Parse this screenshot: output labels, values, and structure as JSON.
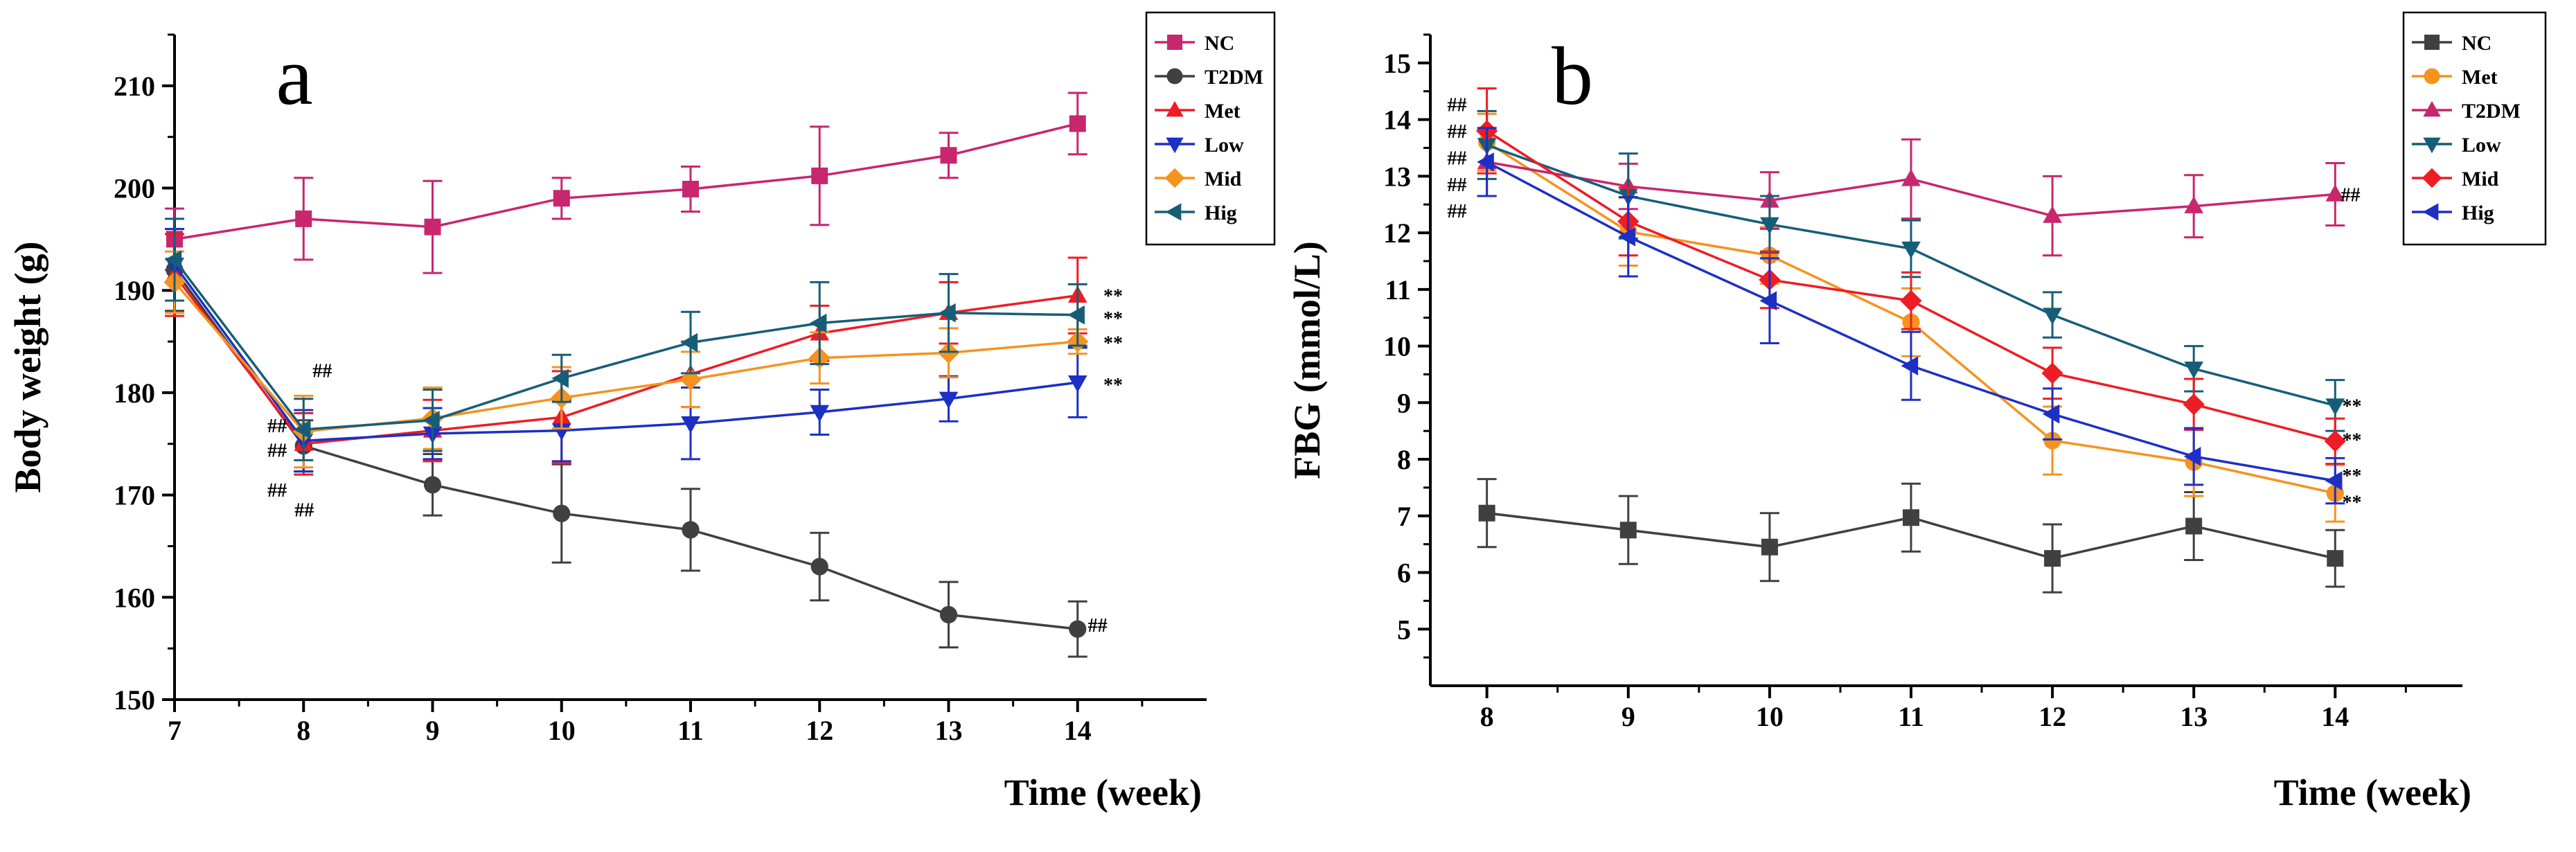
{
  "chart_data": [
    {
      "type": "line",
      "panel_label": "a",
      "xlabel": "Time (week)",
      "ylabel": "Body weight (g)",
      "xlim": [
        7,
        15
      ],
      "ylim": [
        150,
        215
      ],
      "xticks": [
        7,
        8,
        9,
        10,
        11,
        12,
        13,
        14
      ],
      "yticks": [
        150,
        160,
        170,
        180,
        190,
        200,
        210
      ],
      "legend_position": "top-right",
      "series": [
        {
          "name": "NC",
          "color": "#c8266f",
          "marker": "square",
          "x": [
            7,
            8,
            9,
            10,
            11,
            12,
            13,
            14
          ],
          "values": [
            195,
            197,
            196.2,
            199,
            199.9,
            201.2,
            203.2,
            206.3
          ],
          "errors": [
            3,
            4,
            4.5,
            2,
            2.2,
            4.8,
            2.2,
            3
          ]
        },
        {
          "name": "T2DM",
          "color": "#404040",
          "marker": "circle",
          "x": [
            7,
            8,
            9,
            10,
            11,
            12,
            13,
            14
          ],
          "values": [
            192,
            174.8,
            171,
            168.2,
            166.6,
            163,
            158.3,
            156.9
          ],
          "errors": [
            4,
            2.5,
            3,
            4.8,
            4,
            3.3,
            3.2,
            2.7
          ]
        },
        {
          "name": "Met",
          "color": "#ee1c25",
          "marker": "triangle-up",
          "x": [
            7,
            8,
            9,
            10,
            11,
            12,
            13,
            14
          ],
          "values": [
            191.5,
            175,
            176.3,
            177.6,
            181.8,
            185.8,
            187.8,
            189.5
          ],
          "errors": [
            4,
            3,
            3,
            4.5,
            3.2,
            2.7,
            3,
            3.7
          ]
        },
        {
          "name": "Low",
          "color": "#1d2fc5",
          "marker": "triangle-down",
          "x": [
            7,
            8,
            9,
            10,
            11,
            12,
            13,
            14
          ],
          "values": [
            192.5,
            175.3,
            176,
            176.3,
            177,
            178.1,
            179.4,
            181
          ],
          "errors": [
            3.5,
            3,
            2.5,
            3,
            3.5,
            2.2,
            2.2,
            3.4
          ]
        },
        {
          "name": "Mid",
          "color": "#f5931e",
          "marker": "diamond",
          "x": [
            7,
            8,
            9,
            10,
            11,
            12,
            13,
            14
          ],
          "values": [
            190.8,
            176.2,
            177.5,
            179.5,
            181.3,
            183.4,
            183.9,
            185
          ],
          "errors": [
            3,
            3.5,
            3,
            3,
            2.7,
            2.5,
            2.4,
            1.2
          ]
        },
        {
          "name": "Hig",
          "color": "#165e78",
          "marker": "triangle-left",
          "x": [
            7,
            8,
            9,
            10,
            11,
            12,
            13,
            14
          ],
          "values": [
            193,
            176.4,
            177.3,
            181.4,
            184.9,
            186.8,
            187.8,
            187.6
          ],
          "errors": [
            4,
            3,
            3,
            2.3,
            3,
            4,
            3.8,
            3
          ]
        }
      ],
      "annotations": [
        {
          "text": "##",
          "x": 8.07,
          "y": 182.2
        },
        {
          "text": "##",
          "x": 7.72,
          "y": 176.8
        },
        {
          "text": "##",
          "x": 7.72,
          "y": 174.4
        },
        {
          "text": "##",
          "x": 7.72,
          "y": 170.5
        },
        {
          "text": "##",
          "x": 7.93,
          "y": 168.6
        },
        {
          "text": "##",
          "x": 14.08,
          "y": 157.3
        },
        {
          "text": "**",
          "x": 14.2,
          "y": 189.5
        },
        {
          "text": "**",
          "x": 14.2,
          "y": 187.3
        },
        {
          "text": "**",
          "x": 14.2,
          "y": 184.9
        },
        {
          "text": "**",
          "x": 14.2,
          "y": 180.8
        }
      ]
    },
    {
      "type": "line",
      "panel_label": "b",
      "xlabel": "Time (week)",
      "ylabel": "FBG (mmol/L)",
      "xlim": [
        7.6,
        14.9
      ],
      "ylim": [
        4,
        15.5
      ],
      "xticks": [
        8,
        9,
        10,
        11,
        12,
        13,
        14
      ],
      "yticks": [
        5,
        6,
        7,
        8,
        9,
        10,
        11,
        12,
        13,
        14,
        15
      ],
      "legend_position": "top-right",
      "series": [
        {
          "name": "NC",
          "color": "#404040",
          "marker": "square",
          "x": [
            8,
            9,
            10,
            11,
            12,
            13,
            14
          ],
          "values": [
            7.05,
            6.75,
            6.45,
            6.97,
            6.25,
            6.82,
            6.25
          ],
          "errors": [
            0.6,
            0.6,
            0.6,
            0.6,
            0.6,
            0.6,
            0.5
          ]
        },
        {
          "name": "Met",
          "color": "#f5931e",
          "marker": "circle",
          "x": [
            8,
            9,
            10,
            11,
            12,
            13,
            14
          ],
          "values": [
            13.6,
            12.02,
            11.6,
            10.42,
            8.33,
            7.95,
            7.4
          ],
          "errors": [
            0.5,
            0.6,
            0.5,
            0.6,
            0.6,
            0.6,
            0.5
          ]
        },
        {
          "name": "T2DM",
          "color": "#c8266f",
          "marker": "triangle-up",
          "x": [
            8,
            9,
            10,
            11,
            12,
            13,
            14
          ],
          "values": [
            13.25,
            12.82,
            12.57,
            12.95,
            12.3,
            12.47,
            12.68
          ],
          "errors": [
            0.6,
            0.4,
            0.5,
            0.7,
            0.7,
            0.55,
            0.55
          ]
        },
        {
          "name": "Low",
          "color": "#165e78",
          "marker": "triangle-down",
          "x": [
            8,
            9,
            10,
            11,
            12,
            13,
            14
          ],
          "values": [
            13.55,
            12.65,
            12.15,
            11.72,
            10.55,
            9.6,
            8.95
          ],
          "errors": [
            0.6,
            0.75,
            0.5,
            0.5,
            0.4,
            0.4,
            0.45
          ]
        },
        {
          "name": "Mid",
          "color": "#ee1c25",
          "marker": "diamond",
          "x": [
            8,
            9,
            10,
            11,
            12,
            13,
            14
          ],
          "values": [
            13.8,
            12.2,
            11.17,
            10.8,
            9.52,
            8.97,
            8.32
          ],
          "errors": [
            0.75,
            0.6,
            0.5,
            0.5,
            0.45,
            0.45,
            0.4
          ]
        },
        {
          "name": "Hig",
          "color": "#1d2fc5",
          "marker": "triangle-left",
          "x": [
            8,
            9,
            10,
            11,
            12,
            13,
            14
          ],
          "values": [
            13.25,
            11.93,
            10.8,
            9.65,
            8.8,
            8.05,
            7.62
          ],
          "errors": [
            0.6,
            0.7,
            0.75,
            0.6,
            0.45,
            0.5,
            0.4
          ]
        }
      ],
      "annotations": [
        {
          "text": "##",
          "x": 7.72,
          "y": 14.27
        },
        {
          "text": "##",
          "x": 7.72,
          "y": 13.8
        },
        {
          "text": "##",
          "x": 7.72,
          "y": 13.33
        },
        {
          "text": "##",
          "x": 7.72,
          "y": 12.86
        },
        {
          "text": "##",
          "x": 7.72,
          "y": 12.39
        },
        {
          "text": "##",
          "x": 14.04,
          "y": 12.68
        },
        {
          "text": "**",
          "x": 14.05,
          "y": 8.95
        },
        {
          "text": "**",
          "x": 14.05,
          "y": 8.35
        },
        {
          "text": "**",
          "x": 14.05,
          "y": 7.72
        },
        {
          "text": "**",
          "x": 14.05,
          "y": 7.25
        }
      ]
    }
  ]
}
